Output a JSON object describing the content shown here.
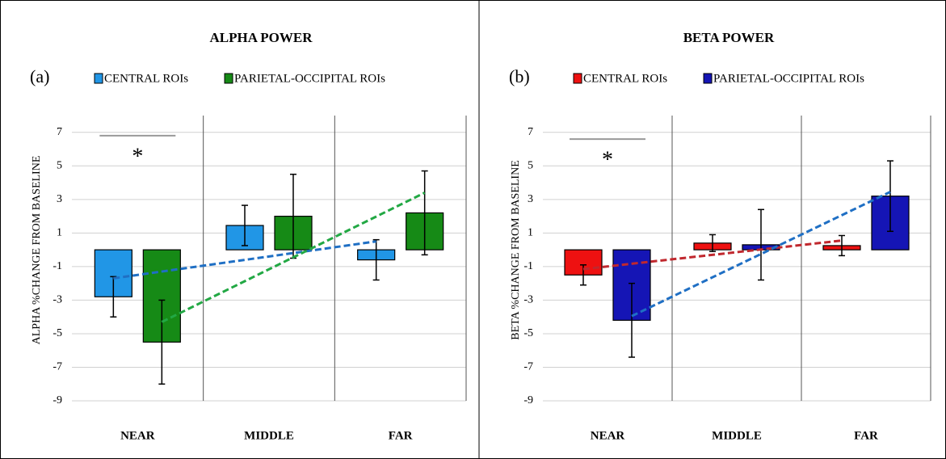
{
  "chart_data": [
    {
      "type": "bar",
      "title": "ALPHA POWER",
      "panel_label": "(a)",
      "y_label": "ALPHA %CHANGE FROM BASELINE",
      "categories": [
        "NEAR",
        "MIDDLE",
        "FAR"
      ],
      "series": [
        {
          "name": "CENTRAL ROIs",
          "color": "#2196e6",
          "values": [
            -2.8,
            1.45,
            -0.6
          ],
          "errors": [
            1.2,
            1.2,
            1.2
          ],
          "trend": [
            -1.7,
            0.5
          ],
          "trend_color": "#1f6fc4"
        },
        {
          "name": "PARIETAL-OCCIPITAL ROIs",
          "color": "#168a16",
          "values": [
            -5.5,
            2.0,
            2.2
          ],
          "errors": [
            2.5,
            2.5,
            2.5
          ],
          "trend": [
            -4.3,
            3.4
          ],
          "trend_color": "#22a844"
        }
      ],
      "significance": {
        "label": "*",
        "value": 6.8
      },
      "ylim": [
        -9,
        8
      ],
      "yticks": [
        -9,
        -7,
        -5,
        -3,
        -1,
        1,
        3,
        5,
        7
      ],
      "grid": true
    },
    {
      "type": "bar",
      "title": "BETA POWER",
      "panel_label": "(b)",
      "y_label": "BETA %CHANGE FROM BASELINE",
      "categories": [
        "NEAR",
        "MIDDLE",
        "FAR"
      ],
      "series": [
        {
          "name": "CENTRAL ROIs",
          "color": "#ee1111",
          "values": [
            -1.5,
            0.4,
            0.25
          ],
          "errors": [
            0.6,
            0.5,
            0.6
          ],
          "trend": [
            -1.15,
            0.55
          ],
          "trend_color": "#c0282e"
        },
        {
          "name": "PARIETAL-OCCIPITAL ROIs",
          "color": "#1515b5",
          "values": [
            -4.2,
            0.3,
            3.2
          ],
          "errors": [
            2.2,
            2.1,
            2.1
          ],
          "trend": [
            -3.95,
            3.45
          ],
          "trend_color": "#1f6fc4"
        }
      ],
      "significance": {
        "label": "*",
        "value": 6.6
      },
      "ylim": [
        -9,
        8
      ],
      "yticks": [
        -9,
        -7,
        -5,
        -3,
        -1,
        1,
        3,
        5,
        7
      ],
      "grid": true
    }
  ]
}
